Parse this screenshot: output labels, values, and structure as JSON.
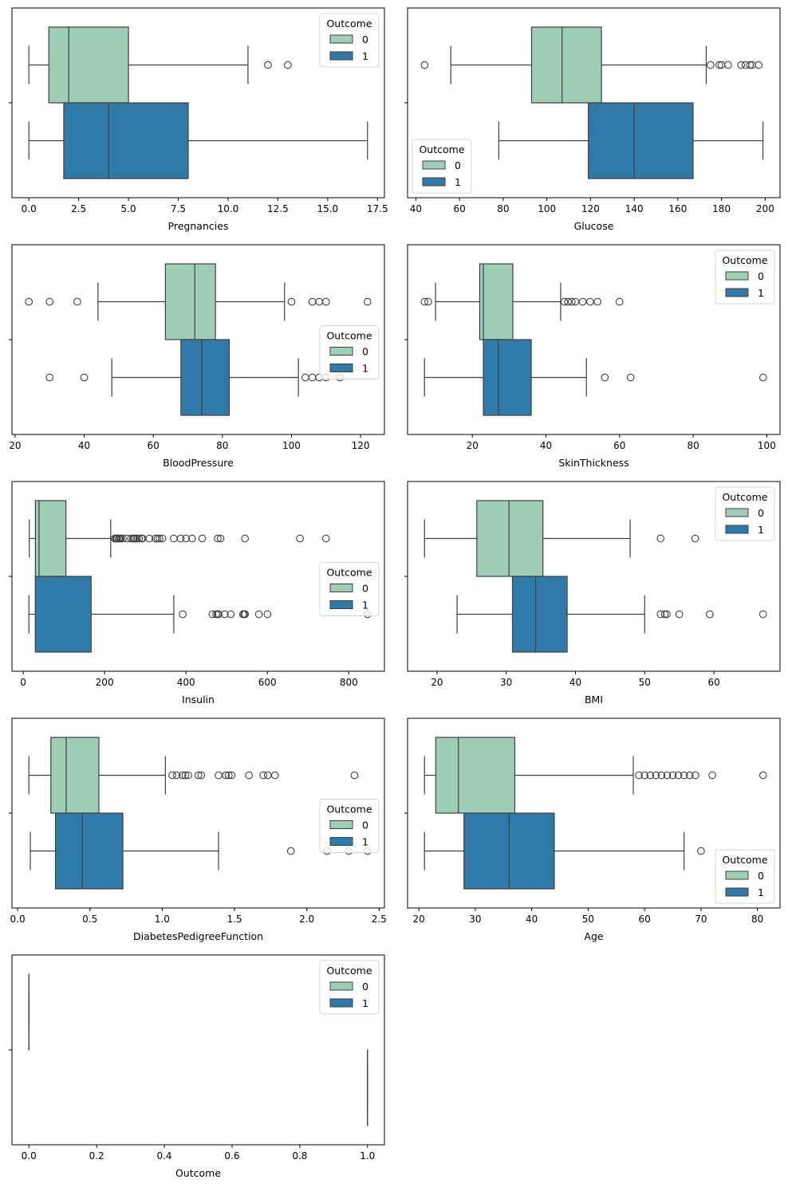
{
  "figure": {
    "legend_title": "Outcome",
    "group_labels": [
      "0",
      "1"
    ],
    "colors": {
      "group0": "#9ecfb6",
      "group1": "#2f7aa8",
      "edge": "#3f3f3f",
      "axis": "#000000"
    }
  },
  "chart_data": [
    {
      "type": "boxplot",
      "orientation": "horizontal",
      "xlabel": "Pregnancies",
      "xlim": [
        -0.85,
        17.85
      ],
      "xticks": [
        0,
        2.5,
        5,
        7.5,
        10,
        12.5,
        15,
        17.5
      ],
      "xtick_labels": [
        "0.0",
        "2.5",
        "5.0",
        "7.5",
        "10.0",
        "12.5",
        "15.0",
        "17.5"
      ],
      "legend_position": "upper-right",
      "legend_title": "Outcome",
      "series": [
        {
          "name": "0",
          "whisker_low": 0,
          "q1": 1,
          "median": 2,
          "q3": 5,
          "whisker_high": 11,
          "outliers": [
            12,
            13
          ]
        },
        {
          "name": "1",
          "whisker_low": 0,
          "q1": 1.75,
          "median": 4,
          "q3": 8,
          "whisker_high": 17,
          "outliers": []
        }
      ]
    },
    {
      "type": "boxplot",
      "orientation": "horizontal",
      "xlabel": "Glucose",
      "xlim": [
        36.2,
        206.8
      ],
      "xticks": [
        40,
        60,
        80,
        100,
        120,
        140,
        160,
        180,
        200
      ],
      "xtick_labels": [
        "40",
        "60",
        "80",
        "100",
        "120",
        "140",
        "160",
        "180",
        "200"
      ],
      "legend_position": "lower-left",
      "legend_title": "Outcome",
      "series": [
        {
          "name": "0",
          "whisker_low": 56,
          "q1": 93,
          "median": 107,
          "q3": 125,
          "whisker_high": 173,
          "outliers": [
            44,
            175,
            179,
            180,
            183,
            189,
            191,
            193,
            194,
            197
          ]
        },
        {
          "name": "1",
          "whisker_low": 78,
          "q1": 119,
          "median": 140,
          "q3": 167,
          "whisker_high": 199,
          "outliers": []
        }
      ]
    },
    {
      "type": "boxplot",
      "orientation": "horizontal",
      "xlabel": "BloodPressure",
      "xlim": [
        19.1,
        126.9
      ],
      "xticks": [
        20,
        40,
        60,
        80,
        100,
        120
      ],
      "xtick_labels": [
        "20",
        "40",
        "60",
        "80",
        "100",
        "120"
      ],
      "legend_position": "center-right",
      "legend_title": "Outcome",
      "series": [
        {
          "name": "0",
          "whisker_low": 44,
          "q1": 63.5,
          "median": 72,
          "q3": 78,
          "whisker_high": 98,
          "outliers": [
            24,
            30,
            38,
            100,
            106,
            108,
            110,
            122
          ]
        },
        {
          "name": "1",
          "whisker_low": 48,
          "q1": 68,
          "median": 74,
          "q3": 82,
          "whisker_high": 102,
          "outliers": [
            30,
            40,
            104,
            106,
            108,
            110,
            114
          ]
        }
      ]
    },
    {
      "type": "boxplot",
      "orientation": "horizontal",
      "xlabel": "SkinThickness",
      "xlim": [
        2.4,
        103.6
      ],
      "xticks": [
        20,
        40,
        60,
        80,
        100
      ],
      "xtick_labels": [
        "20",
        "40",
        "60",
        "80",
        "100"
      ],
      "legend_position": "upper-right",
      "legend_title": "Outcome",
      "series": [
        {
          "name": "0",
          "whisker_low": 10,
          "q1": 22,
          "median": 23,
          "q3": 31,
          "whisker_high": 44,
          "outliers": [
            7,
            8,
            45,
            46,
            47,
            48,
            50,
            52,
            54,
            60
          ]
        },
        {
          "name": "1",
          "whisker_low": 7,
          "q1": 23,
          "median": 27,
          "q3": 36,
          "whisker_high": 51,
          "outliers": [
            56,
            63,
            99
          ]
        }
      ]
    },
    {
      "type": "boxplot",
      "orientation": "horizontal",
      "xlabel": "Insulin",
      "xlim": [
        -27.6,
        887.6
      ],
      "xticks": [
        0,
        200,
        400,
        600,
        800
      ],
      "xtick_labels": [
        "0",
        "200",
        "400",
        "600",
        "800"
      ],
      "legend_position": "center-right",
      "legend_title": "Outcome",
      "series": [
        {
          "name": "0",
          "whisker_low": 15,
          "q1": 30,
          "median": 39,
          "q3": 105,
          "whisker_high": 215,
          "outliers": [
            225,
            228,
            230,
            231,
            235,
            237,
            240,
            245,
            255,
            265,
            270,
            272,
            275,
            280,
            285,
            291,
            293,
            310,
            325,
            330,
            335,
            342,
            370,
            387,
            400,
            415,
            440,
            478,
            485,
            545,
            680,
            744
          ]
        },
        {
          "name": "1",
          "whisker_low": 14,
          "q1": 30,
          "median": 30,
          "q3": 167,
          "whisker_high": 370,
          "outliers": [
            392,
            465,
            474,
            478,
            480,
            495,
            510,
            540,
            543,
            545,
            579,
            600,
            846
          ]
        }
      ]
    },
    {
      "type": "boxplot",
      "orientation": "horizontal",
      "xlabel": "BMI",
      "xlim": [
        15.75,
        69.55
      ],
      "xticks": [
        20,
        30,
        40,
        50,
        60
      ],
      "xtick_labels": [
        "20",
        "30",
        "40",
        "50",
        "60"
      ],
      "legend_position": "upper-right",
      "legend_title": "Outcome",
      "series": [
        {
          "name": "0",
          "whisker_low": 18.2,
          "q1": 25.75,
          "median": 30.4,
          "q3": 35.3,
          "whisker_high": 47.9,
          "outliers": [
            52.3,
            57.3
          ]
        },
        {
          "name": "1",
          "whisker_low": 22.9,
          "q1": 30.9,
          "median": 34.25,
          "q3": 38.8,
          "whisker_high": 50.0,
          "outliers": [
            52.3,
            52.9,
            53.2,
            55.0,
            59.4,
            67.1
          ]
        }
      ]
    },
    {
      "type": "boxplot",
      "orientation": "horizontal",
      "xlabel": "DiabetesPedigreeFunction",
      "xlim": [
        -0.039,
        2.537
      ],
      "xticks": [
        0,
        0.5,
        1.0,
        1.5,
        2.0,
        2.5
      ],
      "xtick_labels": [
        "0.0",
        "0.5",
        "1.0",
        "1.5",
        "2.0",
        "2.5"
      ],
      "legend_position": "center-right",
      "legend_title": "Outcome",
      "series": [
        {
          "name": "0",
          "whisker_low": 0.078,
          "q1": 0.23,
          "median": 0.336,
          "q3": 0.562,
          "whisker_high": 1.022,
          "outliers": [
            1.07,
            1.1,
            1.14,
            1.16,
            1.18,
            1.25,
            1.27,
            1.39,
            1.44,
            1.46,
            1.48,
            1.6,
            1.7,
            1.73,
            1.78,
            2.33
          ]
        },
        {
          "name": "1",
          "whisker_low": 0.088,
          "q1": 0.262,
          "median": 0.449,
          "q3": 0.728,
          "whisker_high": 1.39,
          "outliers": [
            1.89,
            2.14,
            2.29,
            2.42
          ]
        }
      ]
    },
    {
      "type": "boxplot",
      "orientation": "horizontal",
      "xlabel": "Age",
      "xlim": [
        18.0,
        84.0
      ],
      "xticks": [
        20,
        30,
        40,
        50,
        60,
        70,
        80
      ],
      "xtick_labels": [
        "20",
        "30",
        "40",
        "50",
        "60",
        "70",
        "80"
      ],
      "legend_position": "lower-right",
      "legend_title": "Outcome",
      "series": [
        {
          "name": "0",
          "whisker_low": 21,
          "q1": 23,
          "median": 27,
          "q3": 37,
          "whisker_high": 58,
          "outliers": [
            59,
            60,
            61,
            62,
            63,
            64,
            65,
            66,
            67,
            68,
            69,
            72,
            81
          ]
        },
        {
          "name": "1",
          "whisker_low": 21,
          "q1": 28,
          "median": 36,
          "q3": 44,
          "whisker_high": 67,
          "outliers": [
            70
          ]
        }
      ]
    },
    {
      "type": "boxplot",
      "orientation": "horizontal",
      "xlabel": "Outcome",
      "xlim": [
        -0.05,
        1.05
      ],
      "xticks": [
        0,
        0.2,
        0.4,
        0.6,
        0.8,
        1.0
      ],
      "xtick_labels": [
        "0.0",
        "0.2",
        "0.4",
        "0.6",
        "0.8",
        "1.0"
      ],
      "legend_position": "upper-right",
      "legend_title": "Outcome",
      "series": [
        {
          "name": "0",
          "whisker_low": 0,
          "q1": 0,
          "median": 0,
          "q3": 0,
          "whisker_high": 0,
          "outliers": []
        },
        {
          "name": "1",
          "whisker_low": 1,
          "q1": 1,
          "median": 1,
          "q3": 1,
          "whisker_high": 1,
          "outliers": []
        }
      ]
    }
  ]
}
